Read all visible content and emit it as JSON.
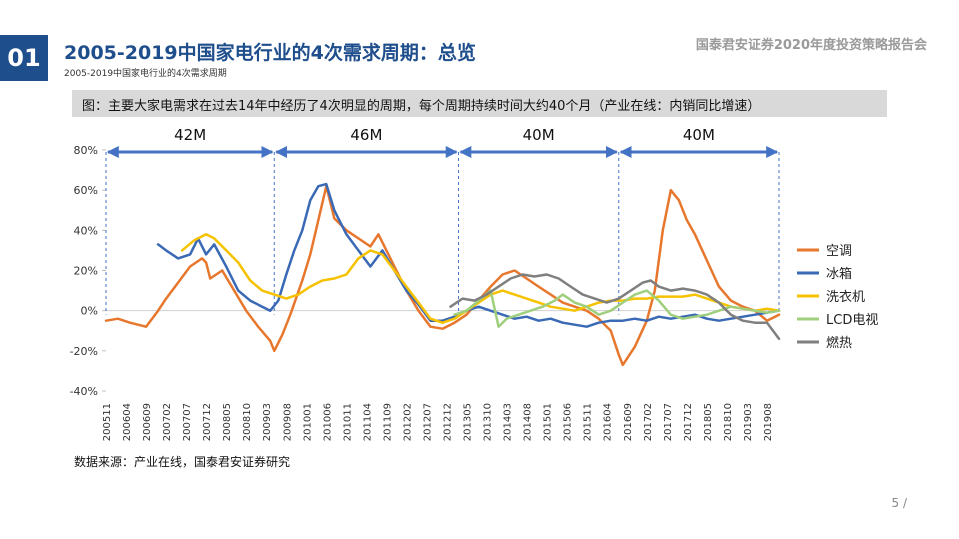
{
  "header": {
    "section_number": "01",
    "title": "2005-2019中国家电行业的4次需求周期：总览",
    "subtitle": "2005-2019中国家电行业的4次需求周期",
    "report_name": "国泰君安证券2020年度投资策略报告会"
  },
  "caption": "图：主要大家电需求在过去14年中经历了4次明显的周期，每个周期持续时间大约40个月（产业在线：内销同比增速）",
  "source": "数据来源：产业在线，国泰君安证券研究",
  "page_number": "5 /",
  "colors": {
    "空调": "#e8772e",
    "冰箱": "#3a69b5",
    "洗衣机": "#f6c200",
    "LCD电视": "#9fcf7d",
    "燃热": "#7f7f7f",
    "cycle_arrow": "#4472c4",
    "section_badge": "#1f4e8c"
  },
  "chart_data": {
    "type": "line",
    "title": "",
    "xlabel": "",
    "ylabel": "",
    "ylim": [
      -40,
      80
    ],
    "y_ticks": [
      "80%",
      "60%",
      "40%",
      "20%",
      "0%",
      "-20%",
      "-40%"
    ],
    "y_tick_values": [
      80,
      60,
      40,
      20,
      0,
      -20,
      -40
    ],
    "x_start": "2005-11",
    "x_end": "2019-11",
    "x_ticks": [
      "200511",
      "200604",
      "200609",
      "200702",
      "200707",
      "200712",
      "200805",
      "200810",
      "200903",
      "200908",
      "201001",
      "201006",
      "201011",
      "201104",
      "201109",
      "201202",
      "201207",
      "201212",
      "201305",
      "201310",
      "201403",
      "201408",
      "201501",
      "201506",
      "201511",
      "201604",
      "201609",
      "201702",
      "201707",
      "201712",
      "201805",
      "201810",
      "201903",
      "201908"
    ],
    "legend_position": "right",
    "grid": false,
    "cycles": [
      {
        "label": "42M",
        "start": "2005-11",
        "end": "2009-05"
      },
      {
        "label": "46M",
        "start": "2009-05",
        "end": "2013-03"
      },
      {
        "label": "40M",
        "start": "2013-03",
        "end": "2016-07"
      },
      {
        "label": "40M",
        "start": "2016-07",
        "end": "2019-11"
      }
    ],
    "series": [
      {
        "name": "空调",
        "points": [
          [
            "2005-11",
            -5
          ],
          [
            "2006-02",
            -4
          ],
          [
            "2006-05",
            -6
          ],
          [
            "2006-09",
            -8
          ],
          [
            "2006-12",
            0
          ],
          [
            "2007-02",
            6
          ],
          [
            "2007-05",
            14
          ],
          [
            "2007-08",
            22
          ],
          [
            "2007-11",
            26
          ],
          [
            "2007-12",
            24
          ],
          [
            "2008-01",
            16
          ],
          [
            "2008-04",
            20
          ],
          [
            "2008-07",
            10
          ],
          [
            "2008-10",
            0
          ],
          [
            "2009-01",
            -8
          ],
          [
            "2009-04",
            -15
          ],
          [
            "2009-05",
            -20
          ],
          [
            "2009-07",
            -12
          ],
          [
            "2009-09",
            -2
          ],
          [
            "2009-12",
            15
          ],
          [
            "2010-02",
            28
          ],
          [
            "2010-04",
            45
          ],
          [
            "2010-06",
            62
          ],
          [
            "2010-08",
            46
          ],
          [
            "2010-11",
            40
          ],
          [
            "2011-02",
            36
          ],
          [
            "2011-05",
            32
          ],
          [
            "2011-07",
            38
          ],
          [
            "2011-09",
            30
          ],
          [
            "2011-11",
            22
          ],
          [
            "2012-02",
            10
          ],
          [
            "2012-05",
            0
          ],
          [
            "2012-08",
            -8
          ],
          [
            "2012-11",
            -9
          ],
          [
            "2013-02",
            -6
          ],
          [
            "2013-05",
            -2
          ],
          [
            "2013-08",
            5
          ],
          [
            "2013-11",
            12
          ],
          [
            "2014-02",
            18
          ],
          [
            "2014-05",
            20
          ],
          [
            "2014-08",
            16
          ],
          [
            "2014-11",
            12
          ],
          [
            "2015-02",
            8
          ],
          [
            "2015-05",
            4
          ],
          [
            "2015-08",
            2
          ],
          [
            "2015-11",
            0
          ],
          [
            "2016-02",
            -4
          ],
          [
            "2016-05",
            -10
          ],
          [
            "2016-07",
            -22
          ],
          [
            "2016-08",
            -27
          ],
          [
            "2016-11",
            -18
          ],
          [
            "2017-02",
            -5
          ],
          [
            "2017-04",
            10
          ],
          [
            "2017-06",
            40
          ],
          [
            "2017-08",
            60
          ],
          [
            "2017-10",
            55
          ],
          [
            "2017-12",
            45
          ],
          [
            "2018-02",
            38
          ],
          [
            "2018-05",
            25
          ],
          [
            "2018-08",
            12
          ],
          [
            "2018-11",
            5
          ],
          [
            "2019-02",
            2
          ],
          [
            "2019-05",
            0
          ],
          [
            "2019-08",
            -5
          ],
          [
            "2019-11",
            -2
          ]
        ]
      },
      {
        "name": "冰箱",
        "points": [
          [
            "2006-12",
            33
          ],
          [
            "2007-02",
            30
          ],
          [
            "2007-05",
            26
          ],
          [
            "2007-08",
            28
          ],
          [
            "2007-10",
            36
          ],
          [
            "2007-12",
            28
          ],
          [
            "2008-02",
            33
          ],
          [
            "2008-05",
            22
          ],
          [
            "2008-08",
            10
          ],
          [
            "2008-11",
            5
          ],
          [
            "2009-02",
            2
          ],
          [
            "2009-04",
            0
          ],
          [
            "2009-06",
            5
          ],
          [
            "2009-08",
            18
          ],
          [
            "2009-10",
            30
          ],
          [
            "2009-12",
            40
          ],
          [
            "2010-02",
            55
          ],
          [
            "2010-04",
            62
          ],
          [
            "2010-06",
            63
          ],
          [
            "2010-08",
            50
          ],
          [
            "2010-11",
            38
          ],
          [
            "2011-02",
            30
          ],
          [
            "2011-05",
            22
          ],
          [
            "2011-08",
            30
          ],
          [
            "2011-11",
            20
          ],
          [
            "2012-02",
            10
          ],
          [
            "2012-05",
            3
          ],
          [
            "2012-08",
            -5
          ],
          [
            "2012-11",
            -5
          ],
          [
            "2013-02",
            -3
          ],
          [
            "2013-05",
            0
          ],
          [
            "2013-08",
            2
          ],
          [
            "2013-11",
            0
          ],
          [
            "2014-02",
            -2
          ],
          [
            "2014-05",
            -4
          ],
          [
            "2014-08",
            -3
          ],
          [
            "2014-11",
            -5
          ],
          [
            "2015-02",
            -4
          ],
          [
            "2015-05",
            -6
          ],
          [
            "2015-08",
            -7
          ],
          [
            "2015-11",
            -8
          ],
          [
            "2016-02",
            -6
          ],
          [
            "2016-05",
            -5
          ],
          [
            "2016-08",
            -5
          ],
          [
            "2016-11",
            -4
          ],
          [
            "2017-02",
            -5
          ],
          [
            "2017-05",
            -3
          ],
          [
            "2017-08",
            -4
          ],
          [
            "2017-11",
            -3
          ],
          [
            "2018-02",
            -2
          ],
          [
            "2018-05",
            -4
          ],
          [
            "2018-08",
            -5
          ],
          [
            "2018-11",
            -4
          ],
          [
            "2019-02",
            -3
          ],
          [
            "2019-05",
            -2
          ],
          [
            "2019-08",
            -1
          ],
          [
            "2019-11",
            0
          ]
        ]
      },
      {
        "name": "洗衣机",
        "points": [
          [
            "2007-06",
            30
          ],
          [
            "2007-09",
            35
          ],
          [
            "2007-12",
            38
          ],
          [
            "2008-02",
            36
          ],
          [
            "2008-05",
            30
          ],
          [
            "2008-08",
            24
          ],
          [
            "2008-11",
            15
          ],
          [
            "2009-02",
            10
          ],
          [
            "2009-05",
            8
          ],
          [
            "2009-08",
            6
          ],
          [
            "2009-11",
            8
          ],
          [
            "2010-02",
            12
          ],
          [
            "2010-05",
            15
          ],
          [
            "2010-08",
            16
          ],
          [
            "2010-11",
            18
          ],
          [
            "2011-02",
            26
          ],
          [
            "2011-05",
            30
          ],
          [
            "2011-08",
            28
          ],
          [
            "2011-11",
            20
          ],
          [
            "2012-02",
            12
          ],
          [
            "2012-05",
            4
          ],
          [
            "2012-08",
            -4
          ],
          [
            "2012-11",
            -6
          ],
          [
            "2013-02",
            -4
          ],
          [
            "2013-05",
            0
          ],
          [
            "2013-08",
            4
          ],
          [
            "2013-11",
            8
          ],
          [
            "2014-02",
            10
          ],
          [
            "2014-05",
            8
          ],
          [
            "2014-08",
            6
          ],
          [
            "2014-11",
            4
          ],
          [
            "2015-02",
            2
          ],
          [
            "2015-05",
            1
          ],
          [
            "2015-08",
            0
          ],
          [
            "2015-11",
            2
          ],
          [
            "2016-02",
            4
          ],
          [
            "2016-05",
            5
          ],
          [
            "2016-08",
            5
          ],
          [
            "2016-11",
            6
          ],
          [
            "2017-02",
            6
          ],
          [
            "2017-05",
            7
          ],
          [
            "2017-08",
            7
          ],
          [
            "2017-11",
            7
          ],
          [
            "2018-02",
            8
          ],
          [
            "2018-05",
            6
          ],
          [
            "2018-08",
            4
          ],
          [
            "2018-11",
            2
          ],
          [
            "2019-02",
            1
          ],
          [
            "2019-05",
            0
          ],
          [
            "2019-08",
            1
          ],
          [
            "2019-11",
            0
          ]
        ]
      },
      {
        "name": "LCD电视",
        "points": [
          [
            "2013-02",
            -2
          ],
          [
            "2013-05",
            0
          ],
          [
            "2013-08",
            5
          ],
          [
            "2013-11",
            10
          ],
          [
            "2014-01",
            -8
          ],
          [
            "2014-03",
            -4
          ],
          [
            "2014-06",
            -2
          ],
          [
            "2014-09",
            0
          ],
          [
            "2014-12",
            2
          ],
          [
            "2015-03",
            5
          ],
          [
            "2015-05",
            8
          ],
          [
            "2015-08",
            4
          ],
          [
            "2015-11",
            2
          ],
          [
            "2016-02",
            -2
          ],
          [
            "2016-05",
            0
          ],
          [
            "2016-08",
            4
          ],
          [
            "2016-11",
            8
          ],
          [
            "2017-02",
            10
          ],
          [
            "2017-05",
            5
          ],
          [
            "2017-08",
            -2
          ],
          [
            "2017-11",
            -4
          ],
          [
            "2018-02",
            -3
          ],
          [
            "2018-05",
            -2
          ],
          [
            "2018-08",
            0
          ],
          [
            "2018-11",
            2
          ],
          [
            "2019-02",
            1
          ],
          [
            "2019-05",
            0
          ],
          [
            "2019-08",
            -1
          ],
          [
            "2019-11",
            0
          ]
        ]
      },
      {
        "name": "燃热",
        "points": [
          [
            "2013-01",
            2
          ],
          [
            "2013-04",
            6
          ],
          [
            "2013-07",
            5
          ],
          [
            "2013-10",
            8
          ],
          [
            "2014-01",
            12
          ],
          [
            "2014-04",
            16
          ],
          [
            "2014-07",
            18
          ],
          [
            "2014-10",
            17
          ],
          [
            "2015-01",
            18
          ],
          [
            "2015-04",
            16
          ],
          [
            "2015-07",
            12
          ],
          [
            "2015-10",
            8
          ],
          [
            "2016-01",
            6
          ],
          [
            "2016-04",
            4
          ],
          [
            "2016-07",
            6
          ],
          [
            "2016-10",
            10
          ],
          [
            "2017-01",
            14
          ],
          [
            "2017-03",
            15
          ],
          [
            "2017-05",
            12
          ],
          [
            "2017-08",
            10
          ],
          [
            "2017-11",
            11
          ],
          [
            "2018-02",
            10
          ],
          [
            "2018-05",
            8
          ],
          [
            "2018-08",
            4
          ],
          [
            "2018-11",
            -2
          ],
          [
            "2019-02",
            -5
          ],
          [
            "2019-05",
            -6
          ],
          [
            "2019-08",
            -6
          ],
          [
            "2019-11",
            -14
          ]
        ]
      }
    ]
  }
}
